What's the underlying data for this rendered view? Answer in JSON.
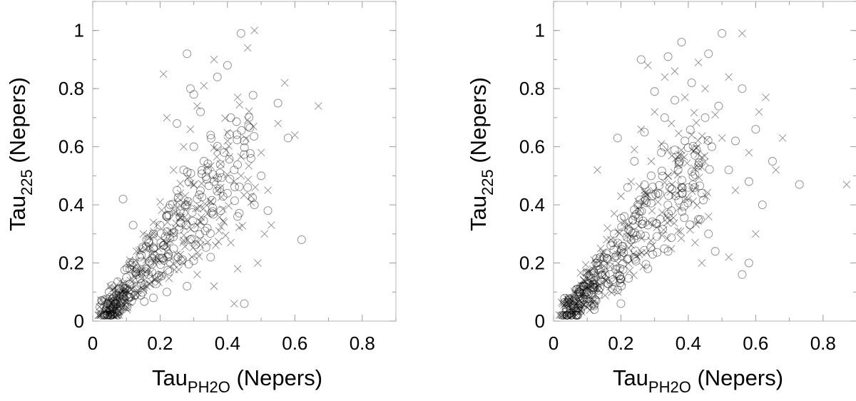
{
  "chart_data": [
    {
      "type": "scatter",
      "xlabel": "Tau",
      "xlabel_sub": "PH2O",
      "xlabel_units": "(Nepers)",
      "ylabel": "Tau",
      "ylabel_sub": "225",
      "ylabel_units": "(Nepers)",
      "xlim": [
        0,
        0.9
      ],
      "ylim": [
        0,
        1.1
      ],
      "xticks": [
        "0",
        "0.2",
        "0.4",
        "0.6",
        "0.8"
      ],
      "yticks": [
        "0",
        "0.2",
        "0.4",
        "0.6",
        "0.8",
        "1"
      ],
      "grid": false,
      "series": [
        {
          "marker": "circle",
          "points": [
            [
              0.05,
              0.03
            ],
            [
              0.06,
              0.05
            ],
            [
              0.07,
              0.06
            ],
            [
              0.06,
              0.08
            ],
            [
              0.08,
              0.1
            ],
            [
              0.09,
              0.12
            ],
            [
              0.1,
              0.15
            ],
            [
              0.11,
              0.18
            ],
            [
              0.12,
              0.2
            ],
            [
              0.13,
              0.16
            ],
            [
              0.14,
              0.22
            ],
            [
              0.15,
              0.25
            ],
            [
              0.16,
              0.28
            ],
            [
              0.17,
              0.2
            ],
            [
              0.18,
              0.3
            ],
            [
              0.19,
              0.15
            ],
            [
              0.2,
              0.33
            ],
            [
              0.21,
              0.26
            ],
            [
              0.22,
              0.36
            ],
            [
              0.23,
              0.4
            ],
            [
              0.24,
              0.29
            ],
            [
              0.25,
              0.45
            ],
            [
              0.26,
              0.38
            ],
            [
              0.27,
              0.52
            ],
            [
              0.28,
              0.92
            ],
            [
              0.29,
              0.8
            ],
            [
              0.3,
              0.6
            ],
            [
              0.31,
              0.42
            ],
            [
              0.32,
              0.72
            ],
            [
              0.33,
              0.55
            ],
            [
              0.34,
              0.32
            ],
            [
              0.35,
              0.64
            ],
            [
              0.36,
              0.48
            ],
            [
              0.37,
              0.84
            ],
            [
              0.38,
              0.38
            ],
            [
              0.39,
              0.58
            ],
            [
              0.4,
              0.44
            ],
            [
              0.41,
              0.7
            ],
            [
              0.42,
              0.52
            ],
            [
              0.43,
              0.36
            ],
            [
              0.44,
              0.99
            ],
            [
              0.45,
              0.62
            ],
            [
              0.46,
              0.46
            ],
            [
              0.47,
              0.56
            ],
            [
              0.48,
              0.4
            ],
            [
              0.5,
              0.5
            ],
            [
              0.52,
              0.38
            ],
            [
              0.55,
              0.75
            ],
            [
              0.58,
              0.63
            ],
            [
              0.62,
              0.28
            ],
            [
              0.45,
              0.06
            ],
            [
              0.09,
              0.42
            ],
            [
              0.12,
              0.33
            ],
            [
              0.18,
              0.08
            ],
            [
              0.22,
              0.1
            ],
            [
              0.25,
              0.68
            ],
            [
              0.3,
              0.78
            ],
            [
              0.35,
              0.22
            ],
            [
              0.4,
              0.88
            ],
            [
              0.28,
              0.12
            ]
          ]
        },
        {
          "marker": "cross",
          "points": [
            [
              0.05,
              0.04
            ],
            [
              0.06,
              0.07
            ],
            [
              0.07,
              0.09
            ],
            [
              0.08,
              0.05
            ],
            [
              0.09,
              0.13
            ],
            [
              0.1,
              0.1
            ],
            [
              0.11,
              0.21
            ],
            [
              0.12,
              0.14
            ],
            [
              0.13,
              0.24
            ],
            [
              0.14,
              0.18
            ],
            [
              0.15,
              0.3
            ],
            [
              0.16,
              0.12
            ],
            [
              0.17,
              0.26
            ],
            [
              0.18,
              0.34
            ],
            [
              0.19,
              0.22
            ],
            [
              0.2,
              0.41
            ],
            [
              0.21,
              0.85
            ],
            [
              0.22,
              0.7
            ],
            [
              0.23,
              0.31
            ],
            [
              0.24,
              0.52
            ],
            [
              0.25,
              0.23
            ],
            [
              0.26,
              0.44
            ],
            [
              0.27,
              0.6
            ],
            [
              0.28,
              0.35
            ],
            [
              0.29,
              0.66
            ],
            [
              0.3,
              0.47
            ],
            [
              0.31,
              0.74
            ],
            [
              0.32,
              0.28
            ],
            [
              0.33,
              0.81
            ],
            [
              0.34,
              0.53
            ],
            [
              0.35,
              0.41
            ],
            [
              0.36,
              0.9
            ],
            [
              0.37,
              0.59
            ],
            [
              0.38,
              0.46
            ],
            [
              0.39,
              0.34
            ],
            [
              0.4,
              0.62
            ],
            [
              0.41,
              0.27
            ],
            [
              0.42,
              0.06
            ],
            [
              0.43,
              0.77
            ],
            [
              0.44,
              0.5
            ],
            [
              0.46,
              0.94
            ],
            [
              0.47,
              0.43
            ],
            [
              0.48,
              1.0
            ],
            [
              0.5,
              0.58
            ],
            [
              0.52,
              0.45
            ],
            [
              0.53,
              0.33
            ],
            [
              0.55,
              0.68
            ],
            [
              0.57,
              0.82
            ],
            [
              0.6,
              0.64
            ],
            [
              0.67,
              0.74
            ],
            [
              0.51,
              0.3
            ],
            [
              0.49,
              0.2
            ],
            [
              0.43,
              0.18
            ],
            [
              0.36,
              0.12
            ],
            [
              0.31,
              0.16
            ]
          ]
        }
      ]
    },
    {
      "type": "scatter",
      "xlabel": "Tau",
      "xlabel_sub": "PH2O",
      "xlabel_units": "(Nepers)",
      "ylabel": "Tau",
      "ylabel_sub": "225",
      "ylabel_units": "(Nepers)",
      "xlim": [
        0,
        0.9
      ],
      "ylim": [
        0,
        1.1
      ],
      "xticks": [
        "0",
        "0.2",
        "0.4",
        "0.6",
        "0.8"
      ],
      "yticks": [
        "0",
        "0.2",
        "0.4",
        "0.6",
        "0.8",
        "1"
      ],
      "grid": false,
      "series": [
        {
          "marker": "circle",
          "points": [
            [
              0.05,
              0.04
            ],
            [
              0.06,
              0.07
            ],
            [
              0.07,
              0.09
            ],
            [
              0.08,
              0.06
            ],
            [
              0.09,
              0.12
            ],
            [
              0.1,
              0.1
            ],
            [
              0.11,
              0.16
            ],
            [
              0.12,
              0.14
            ],
            [
              0.13,
              0.2
            ],
            [
              0.14,
              0.18
            ],
            [
              0.15,
              0.22
            ],
            [
              0.16,
              0.13
            ],
            [
              0.17,
              0.26
            ],
            [
              0.18,
              0.3
            ],
            [
              0.19,
              0.63
            ],
            [
              0.2,
              0.24
            ],
            [
              0.21,
              0.36
            ],
            [
              0.22,
              0.46
            ],
            [
              0.23,
              0.28
            ],
            [
              0.24,
              0.55
            ],
            [
              0.25,
              0.4
            ],
            [
              0.26,
              0.9
            ],
            [
              0.27,
              0.65
            ],
            [
              0.28,
              0.33
            ],
            [
              0.29,
              0.5
            ],
            [
              0.3,
              0.79
            ],
            [
              0.31,
              0.44
            ],
            [
              0.32,
              0.58
            ],
            [
              0.33,
              0.7
            ],
            [
              0.34,
              0.91
            ],
            [
              0.35,
              0.38
            ],
            [
              0.36,
              0.76
            ],
            [
              0.37,
              0.52
            ],
            [
              0.38,
              0.96
            ],
            [
              0.39,
              0.62
            ],
            [
              0.4,
              0.46
            ],
            [
              0.41,
              0.82
            ],
            [
              0.42,
              0.57
            ],
            [
              0.43,
              0.35
            ],
            [
              0.44,
              0.44
            ],
            [
              0.45,
              0.7
            ],
            [
              0.46,
              0.92
            ],
            [
              0.47,
              0.6
            ],
            [
              0.48,
              0.24
            ],
            [
              0.49,
              0.74
            ],
            [
              0.5,
              0.99
            ],
            [
              0.52,
              0.52
            ],
            [
              0.54,
              0.62
            ],
            [
              0.56,
              0.8
            ],
            [
              0.58,
              0.48
            ],
            [
              0.6,
              0.66
            ],
            [
              0.62,
              0.4
            ],
            [
              0.65,
              0.55
            ],
            [
              0.73,
              0.47
            ],
            [
              0.56,
              0.16
            ],
            [
              0.58,
              0.2
            ],
            [
              0.34,
              0.24
            ],
            [
              0.2,
              0.06
            ],
            [
              0.28,
              0.18
            ],
            [
              0.46,
              0.3
            ]
          ]
        },
        {
          "marker": "cross",
          "points": [
            [
              0.05,
              0.05
            ],
            [
              0.06,
              0.08
            ],
            [
              0.07,
              0.11
            ],
            [
              0.08,
              0.09
            ],
            [
              0.09,
              0.14
            ],
            [
              0.1,
              0.17
            ],
            [
              0.11,
              0.12
            ],
            [
              0.12,
              0.21
            ],
            [
              0.13,
              0.52
            ],
            [
              0.14,
              0.25
            ],
            [
              0.15,
              0.19
            ],
            [
              0.16,
              0.32
            ],
            [
              0.17,
              0.28
            ],
            [
              0.18,
              0.37
            ],
            [
              0.19,
              0.23
            ],
            [
              0.2,
              0.43
            ],
            [
              0.21,
              0.34
            ],
            [
              0.22,
              0.3
            ],
            [
              0.23,
              0.48
            ],
            [
              0.24,
              0.59
            ],
            [
              0.25,
              0.39
            ],
            [
              0.26,
              0.66
            ],
            [
              0.27,
              0.45
            ],
            [
              0.28,
              0.88
            ],
            [
              0.29,
              0.55
            ],
            [
              0.3,
              0.72
            ],
            [
              0.31,
              0.41
            ],
            [
              0.32,
              0.61
            ],
            [
              0.33,
              0.84
            ],
            [
              0.34,
              0.5
            ],
            [
              0.35,
              0.68
            ],
            [
              0.36,
              0.86
            ],
            [
              0.37,
              0.31
            ],
            [
              0.38,
              0.57
            ],
            [
              0.39,
              0.77
            ],
            [
              0.4,
              0.42
            ],
            [
              0.41,
              0.64
            ],
            [
              0.42,
              0.27
            ],
            [
              0.43,
              0.89
            ],
            [
              0.44,
              0.53
            ],
            [
              0.45,
              0.8
            ],
            [
              0.46,
              0.36
            ],
            [
              0.48,
              0.71
            ],
            [
              0.5,
              0.63
            ],
            [
              0.52,
              0.84
            ],
            [
              0.54,
              0.45
            ],
            [
              0.56,
              0.99
            ],
            [
              0.58,
              0.58
            ],
            [
              0.61,
              0.72
            ],
            [
              0.63,
              0.77
            ],
            [
              0.66,
              0.52
            ],
            [
              0.68,
              0.63
            ],
            [
              0.87,
              0.47
            ],
            [
              0.6,
              0.3
            ],
            [
              0.52,
              0.22
            ],
            [
              0.44,
              0.2
            ]
          ]
        }
      ]
    }
  ]
}
